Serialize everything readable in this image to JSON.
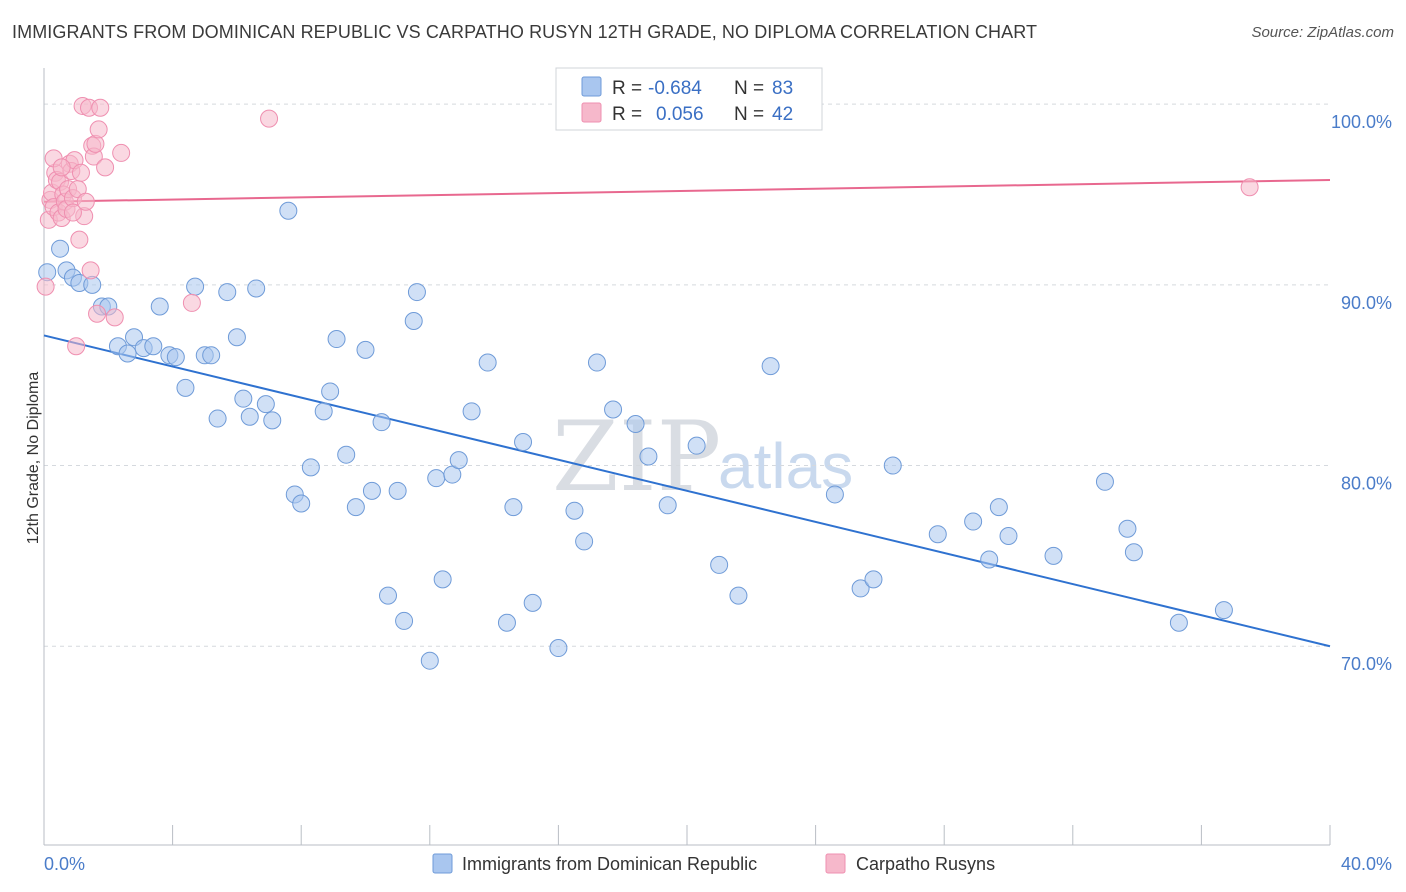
{
  "title": "IMMIGRANTS FROM DOMINICAN REPUBLIC VS CARPATHO RUSYN 12TH GRADE, NO DIPLOMA CORRELATION CHART",
  "source": "Source: ZipAtlas.com",
  "watermark": {
    "zip": "ZIP",
    "atlas": "atlas"
  },
  "colors": {
    "blue_fill": "#a9c6ef",
    "blue_stroke": "#6f9bd8",
    "blue_line": "#2f72d0",
    "pink_fill": "#f6b8cb",
    "pink_stroke": "#ef8fb0",
    "pink_line": "#e8688f",
    "tick_label": "#4a7cc9",
    "grid": "#d5d9de"
  },
  "legend": {
    "rows": [
      {
        "r_label": "R =",
        "r_value": "-0.684",
        "n_label": "N =",
        "n_value": "83"
      },
      {
        "r_label": "R =",
        "r_value": "0.056",
        "n_label": "N =",
        "n_value": "42"
      }
    ],
    "bottom": [
      "Immigrants from Dominican Republic",
      "Carpatho Rusyns"
    ]
  },
  "chart_data": {
    "type": "scatter",
    "title": "IMMIGRANTS FROM DOMINICAN REPUBLIC VS CARPATHO RUSYN 12TH GRADE, NO DIPLOMA CORRELATION CHART",
    "xlabel": "",
    "ylabel": "12th Grade, No Diploma",
    "xlim": [
      0,
      40
    ],
    "ylim": [
      59,
      102
    ],
    "x_tick_labels": [
      "0.0%",
      "40.0%"
    ],
    "y_ticks": [
      70,
      80,
      90,
      100
    ],
    "y_tick_labels": [
      "70.0%",
      "80.0%",
      "90.0%",
      "100.0%"
    ],
    "grid": true,
    "legend_position": "top-center",
    "series": [
      {
        "name": "Immigrants from Dominican Republic",
        "color": "#a9c6ef",
        "trend": {
          "x": [
            0,
            40
          ],
          "y": [
            87.2,
            70.0
          ]
        },
        "points": [
          [
            0.1,
            90.7
          ],
          [
            0.5,
            92.0
          ],
          [
            0.7,
            90.8
          ],
          [
            0.9,
            90.4
          ],
          [
            1.1,
            90.1
          ],
          [
            1.5,
            90.0
          ],
          [
            1.8,
            88.8
          ],
          [
            2.0,
            88.8
          ],
          [
            2.3,
            86.6
          ],
          [
            2.6,
            86.2
          ],
          [
            2.8,
            87.1
          ],
          [
            3.1,
            86.5
          ],
          [
            3.4,
            86.6
          ],
          [
            3.6,
            88.8
          ],
          [
            3.9,
            86.1
          ],
          [
            4.1,
            86.0
          ],
          [
            4.4,
            84.3
          ],
          [
            4.7,
            89.9
          ],
          [
            5.0,
            86.1
          ],
          [
            5.2,
            86.1
          ],
          [
            5.4,
            82.6
          ],
          [
            5.7,
            89.6
          ],
          [
            6.0,
            87.1
          ],
          [
            6.2,
            83.7
          ],
          [
            6.4,
            82.7
          ],
          [
            6.6,
            89.8
          ],
          [
            6.9,
            83.4
          ],
          [
            7.1,
            82.5
          ],
          [
            7.6,
            94.1
          ],
          [
            7.8,
            78.4
          ],
          [
            8.0,
            77.9
          ],
          [
            8.3,
            79.9
          ],
          [
            8.7,
            83.0
          ],
          [
            8.9,
            84.1
          ],
          [
            9.1,
            87.0
          ],
          [
            9.4,
            80.6
          ],
          [
            9.7,
            77.7
          ],
          [
            10.0,
            86.4
          ],
          [
            10.2,
            78.6
          ],
          [
            10.5,
            82.4
          ],
          [
            10.7,
            72.8
          ],
          [
            11.0,
            78.6
          ],
          [
            11.2,
            71.4
          ],
          [
            11.6,
            89.6
          ],
          [
            11.5,
            88.0
          ],
          [
            12.0,
            69.2
          ],
          [
            12.2,
            79.3
          ],
          [
            12.4,
            73.7
          ],
          [
            12.7,
            79.5
          ],
          [
            12.9,
            80.3
          ],
          [
            13.3,
            83.0
          ],
          [
            13.8,
            85.7
          ],
          [
            14.4,
            71.3
          ],
          [
            14.6,
            77.7
          ],
          [
            14.9,
            81.3
          ],
          [
            15.2,
            72.4
          ],
          [
            16.0,
            69.9
          ],
          [
            16.5,
            77.5
          ],
          [
            16.8,
            75.8
          ],
          [
            17.2,
            85.7
          ],
          [
            17.7,
            83.1
          ],
          [
            18.4,
            82.3
          ],
          [
            18.8,
            80.5
          ],
          [
            19.4,
            77.8
          ],
          [
            20.3,
            81.1
          ],
          [
            21.0,
            74.5
          ],
          [
            21.6,
            72.8
          ],
          [
            22.6,
            85.5
          ],
          [
            24.6,
            78.4
          ],
          [
            25.4,
            73.2
          ],
          [
            25.8,
            73.7
          ],
          [
            26.4,
            80.0
          ],
          [
            27.8,
            76.2
          ],
          [
            28.9,
            76.9
          ],
          [
            29.4,
            74.8
          ],
          [
            29.7,
            77.7
          ],
          [
            30.0,
            76.1
          ],
          [
            31.4,
            75.0
          ],
          [
            33.0,
            79.1
          ],
          [
            33.7,
            76.5
          ],
          [
            33.9,
            75.2
          ],
          [
            35.3,
            71.3
          ],
          [
            36.7,
            72.0
          ]
        ]
      },
      {
        "name": "Carpatho Rusyns",
        "color": "#f6b8cb",
        "trend": {
          "x": [
            0,
            40
          ],
          "y": [
            94.6,
            95.8
          ]
        },
        "points": [
          [
            0.05,
            89.9
          ],
          [
            0.15,
            93.6
          ],
          [
            0.2,
            94.7
          ],
          [
            0.25,
            95.1
          ],
          [
            0.3,
            94.3
          ],
          [
            0.35,
            96.2
          ],
          [
            0.4,
            95.8
          ],
          [
            0.45,
            94.0
          ],
          [
            0.5,
            95.7
          ],
          [
            0.55,
            93.7
          ],
          [
            0.6,
            95.0
          ],
          [
            0.65,
            94.6
          ],
          [
            0.7,
            94.2
          ],
          [
            0.75,
            95.3
          ],
          [
            0.8,
            96.7
          ],
          [
            0.85,
            96.3
          ],
          [
            0.9,
            94.8
          ],
          [
            0.95,
            96.9
          ],
          [
            1.0,
            86.6
          ],
          [
            1.05,
            95.3
          ],
          [
            1.1,
            92.5
          ],
          [
            1.15,
            96.2
          ],
          [
            1.2,
            99.9
          ],
          [
            1.25,
            93.8
          ],
          [
            1.3,
            94.6
          ],
          [
            1.4,
            99.8
          ],
          [
            1.45,
            90.8
          ],
          [
            1.5,
            97.7
          ],
          [
            1.55,
            97.1
          ],
          [
            1.6,
            97.8
          ],
          [
            1.65,
            88.4
          ],
          [
            1.7,
            98.6
          ],
          [
            1.75,
            99.8
          ],
          [
            1.9,
            96.5
          ],
          [
            2.2,
            88.2
          ],
          [
            2.4,
            97.3
          ],
          [
            4.6,
            89.0
          ],
          [
            7.0,
            99.2
          ],
          [
            37.5,
            95.4
          ],
          [
            0.3,
            97.0
          ],
          [
            0.55,
            96.5
          ],
          [
            0.9,
            94.0
          ]
        ]
      }
    ]
  }
}
